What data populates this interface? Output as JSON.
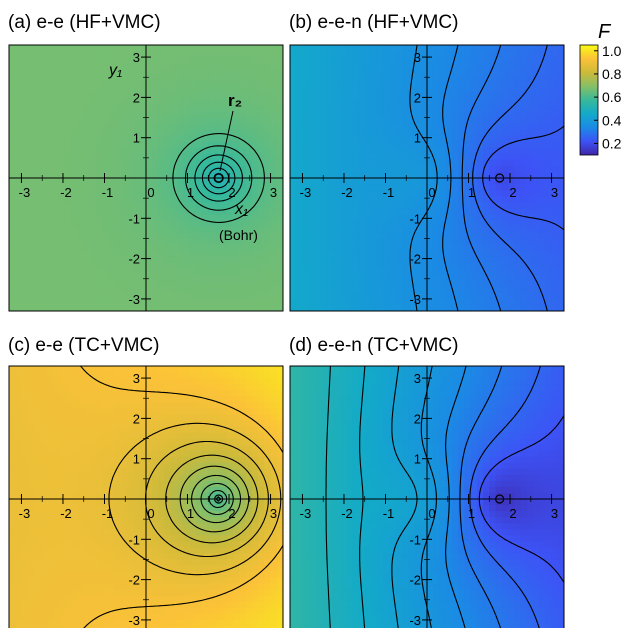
{
  "chart_data": [
    {
      "type": "heatmap",
      "title": "(a) e-e (HF+VMC)",
      "model": "ee",
      "field": {
        "base": 0.67,
        "well_depth": 0.17,
        "well_width": 0.9,
        "tilt": 0.0
      },
      "contour_levels": [
        0.5,
        0.52,
        0.54,
        0.56,
        0.58,
        0.6,
        0.62
      ],
      "xlim": [
        -3.3,
        3.3
      ],
      "ylim": [
        -3.3,
        3.3
      ],
      "xticks": [
        -3,
        -2,
        -1,
        0,
        1,
        2,
        3
      ],
      "yticks": [
        -3,
        -2,
        -1,
        1,
        2,
        3
      ],
      "x_tick_labels": [
        "-3",
        "-2",
        "-1",
        "0",
        "1",
        "2",
        "3"
      ],
      "y_tick_labels": [
        "-3",
        "-2",
        "-1",
        "1",
        "2",
        "3"
      ],
      "electron_position": [
        1.75,
        0
      ],
      "annotations": {
        "y_axis": "y₁",
        "x_axis": "x₁",
        "x_unit": "(Bohr)",
        "r2": "r₂"
      }
    },
    {
      "type": "heatmap",
      "title": "(b) e-e-n (HF+VMC)",
      "model": "een",
      "field": {
        "base": 0.36,
        "tilt": 0.028,
        "nuc_amp": 0.05,
        "nuc_width": 1.3,
        "well_depth": 0.13,
        "well_width": 1.3
      },
      "contour_levels": [
        0.24,
        0.27,
        0.3,
        0.33,
        0.36
      ],
      "xlim": [
        -3.3,
        3.3
      ],
      "ylim": [
        -3.3,
        3.3
      ],
      "xticks": [
        -3,
        -2,
        -1,
        0,
        1,
        2,
        3
      ],
      "yticks": [
        -3,
        -2,
        -1,
        1,
        2,
        3
      ],
      "x_tick_labels": [
        "-3",
        "-2",
        "-1",
        "0",
        "1",
        "2",
        "3"
      ],
      "y_tick_labels": [
        "-3",
        "-2",
        "-1",
        "1",
        "2",
        "3"
      ],
      "electron_position": [
        1.75,
        0
      ]
    },
    {
      "type": "heatmap",
      "title": "(c) e-e (TC+VMC)",
      "model": "ee",
      "field": {
        "base": 0.97,
        "well_depth": 0.42,
        "well_width": 1.5,
        "tilt": 0.02
      },
      "contour_levels": [
        0.6,
        0.64,
        0.68,
        0.72,
        0.76,
        0.8,
        0.84,
        0.88,
        0.92
      ],
      "xlim": [
        -3.3,
        3.3
      ],
      "ylim": [
        -3.3,
        3.3
      ],
      "xticks": [
        -3,
        -2,
        -1,
        0,
        1,
        2,
        3
      ],
      "yticks": [
        -3,
        -2,
        -1,
        1,
        2,
        3
      ],
      "x_tick_labels": [
        "-3",
        "-2",
        "-1",
        "0",
        "1",
        "2",
        "3"
      ],
      "y_tick_labels": [
        "-3",
        "-2",
        "-1",
        "1",
        "2",
        "3"
      ],
      "electron_position": [
        1.75,
        0
      ]
    },
    {
      "type": "heatmap",
      "title": "(d) e-e-n (TC+VMC)",
      "model": "een",
      "field": {
        "base": 0.4,
        "tilt": 0.045,
        "nuc_amp": 0.06,
        "nuc_width": 1.3,
        "well_depth": 0.2,
        "well_width": 1.4
      },
      "contour_levels": [
        0.22,
        0.26,
        0.3,
        0.34,
        0.38,
        0.42,
        0.46,
        0.5
      ],
      "xlim": [
        -3.3,
        3.3
      ],
      "ylim": [
        -3.3,
        3.3
      ],
      "xticks": [
        -3,
        -2,
        -1,
        0,
        1,
        2,
        3
      ],
      "yticks": [
        -3,
        -2,
        -1,
        1,
        2,
        3
      ],
      "x_tick_labels": [
        "-3",
        "-2",
        "-1",
        "0",
        "1",
        "2",
        "3"
      ],
      "y_tick_labels": [
        "-3",
        "-2",
        "-1",
        "1",
        "2",
        "3"
      ],
      "electron_position": [
        1.75,
        0
      ]
    }
  ],
  "colorbar": {
    "label": "F",
    "range": [
      0.1,
      1.05
    ],
    "ticks": [
      0.2,
      0.4,
      0.6,
      0.8,
      1.0
    ],
    "tick_labels": [
      "0.2",
      "0.4",
      "0.6",
      "0.8",
      "1.0"
    ],
    "colormap": "parula",
    "colors": [
      "#3e26a8",
      "#3d53f6",
      "#1b8ae5",
      "#13aac9",
      "#38b99a",
      "#86bf67",
      "#cdba3a",
      "#fbc238",
      "#f9fb15"
    ]
  }
}
